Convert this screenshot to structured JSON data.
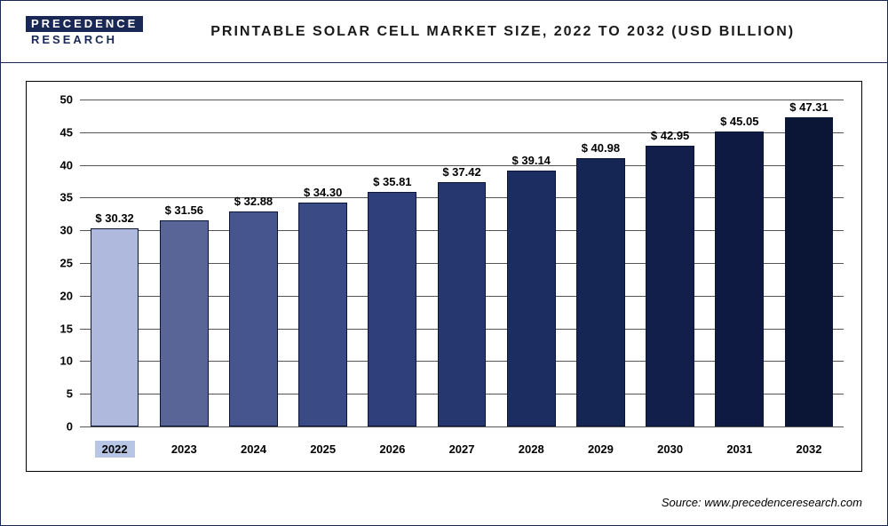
{
  "logo": {
    "top": "PRECEDENCE",
    "bottom": "RESEARCH"
  },
  "title": "PRINTABLE SOLAR CELL MARKET SIZE, 2022 TO 2032 (USD BILLION)",
  "source": "Source: www.precedenceresearch.com",
  "chart": {
    "type": "bar",
    "background_color": "#ffffff",
    "grid_color": "#555555",
    "border_color": "#000000",
    "ylim": [
      0,
      50
    ],
    "ytick_step": 5,
    "yticks": [
      0,
      5,
      10,
      15,
      20,
      25,
      30,
      35,
      40,
      45,
      50
    ],
    "bar_border": "#0b1636",
    "value_prefix": "$ ",
    "title_fontsize": 16,
    "label_fontsize": 13,
    "value_fontsize": 13,
    "highlight_year": "2022",
    "highlight_bg": "#b8c6e6",
    "bars": [
      {
        "year": "2022",
        "value": 30.32,
        "label": "$ 30.32",
        "color": "#aeb9dd"
      },
      {
        "year": "2023",
        "value": 31.56,
        "label": "$ 31.56",
        "color": "#586596"
      },
      {
        "year": "2024",
        "value": 32.88,
        "label": "$ 32.88",
        "color": "#46558e"
      },
      {
        "year": "2025",
        "value": 34.3,
        "label": "$ 34.30",
        "color": "#3a4a85"
      },
      {
        "year": "2026",
        "value": 35.81,
        "label": "$ 35.81",
        "color": "#2e3f7b"
      },
      {
        "year": "2027",
        "value": 37.42,
        "label": "$ 37.42",
        "color": "#25376e"
      },
      {
        "year": "2028",
        "value": 39.14,
        "label": "$ 39.14",
        "color": "#1c2e61"
      },
      {
        "year": "2029",
        "value": 40.98,
        "label": "$ 40.98",
        "color": "#162654"
      },
      {
        "year": "2030",
        "value": 42.95,
        "label": "$ 42.95",
        "color": "#121f4a"
      },
      {
        "year": "2031",
        "value": 45.05,
        "label": "$ 45.05",
        "color": "#0e1a41"
      },
      {
        "year": "2032",
        "value": 47.31,
        "label": "$ 47.31",
        "color": "#0b1636"
      }
    ]
  }
}
